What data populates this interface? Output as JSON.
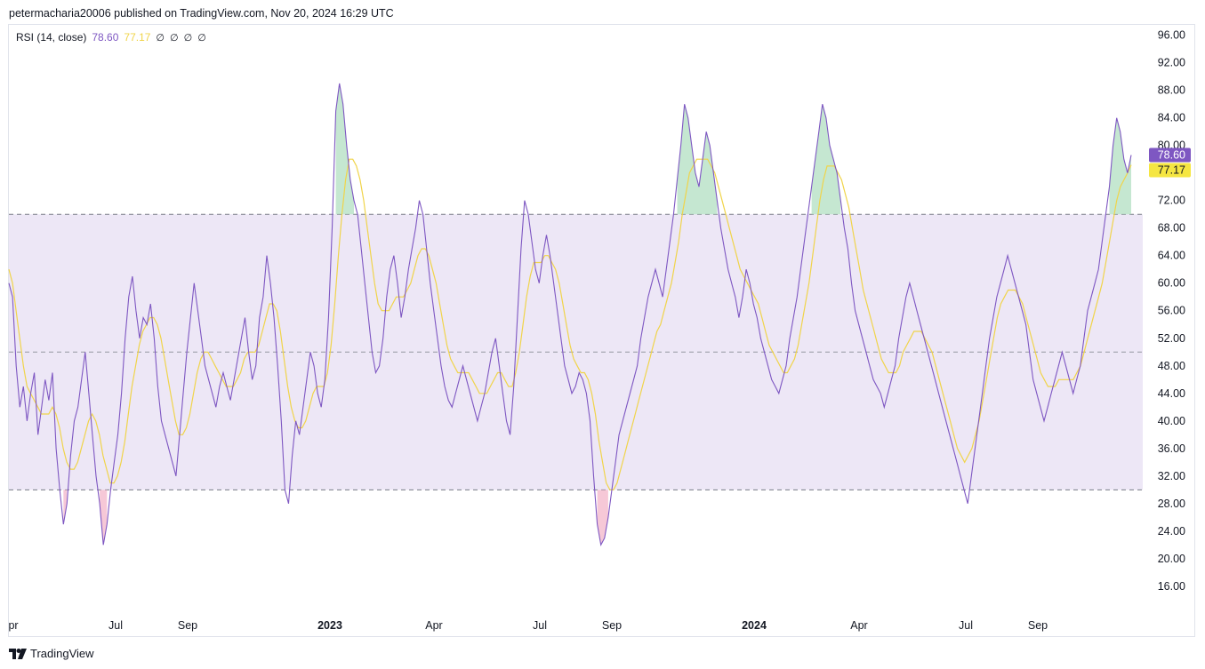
{
  "header": {
    "published": "petermacharia20006 published on TradingView.com, Nov 20, 2024 16:29 UTC"
  },
  "legend": {
    "name": "RSI (14, close)",
    "rsi_value": "78.60",
    "ma_value": "77.17",
    "na_marks": [
      "∅",
      "∅",
      "∅",
      "∅"
    ]
  },
  "footer": {
    "brand": "TradingView"
  },
  "colors": {
    "rsi": "#7e57c2",
    "ma": "#f0d44a",
    "band": "#ede7f6",
    "overbought_fill": "#b2dfc2",
    "oversold_fill": "#f3b6c9"
  },
  "chart_data": {
    "type": "line",
    "title": "RSI (14, close)",
    "ylim": [
      12.5,
      97.5
    ],
    "y_ticks": [
      "96.00",
      "92.00",
      "88.00",
      "84.00",
      "80.00",
      "76.00",
      "72.00",
      "68.00",
      "64.00",
      "60.00",
      "56.00",
      "52.00",
      "48.00",
      "44.00",
      "40.00",
      "36.00",
      "32.00",
      "28.00",
      "24.00",
      "20.00",
      "16.00"
    ],
    "x_ticks": [
      {
        "label": "pr",
        "bold": false
      },
      {
        "label": "Jul",
        "bold": false
      },
      {
        "label": "Sep",
        "bold": false
      },
      {
        "label": "2023",
        "bold": true
      },
      {
        "label": "Apr",
        "bold": false
      },
      {
        "label": "Jul",
        "bold": false
      },
      {
        "label": "Sep",
        "bold": false
      },
      {
        "label": "2024",
        "bold": true
      },
      {
        "label": "Apr",
        "bold": false
      },
      {
        "label": "Jul",
        "bold": false
      },
      {
        "label": "Sep",
        "bold": false
      }
    ],
    "levels": {
      "upper": 70,
      "middle": 50,
      "lower": 30
    },
    "price_tags": [
      {
        "label": "78.60",
        "value": 78.6,
        "color": "#7e57c2",
        "text_color": "#ffffff"
      },
      {
        "label": "77.17",
        "value": 77.17,
        "color": "#f5e642",
        "text_color": "#131722"
      }
    ],
    "grid": false,
    "series": [
      {
        "name": "RSI",
        "values": [
          60,
          58,
          48,
          42,
          45,
          40,
          44,
          47,
          38,
          42,
          46,
          43,
          47,
          36,
          30,
          25,
          28,
          35,
          40,
          42,
          46,
          50,
          44,
          38,
          32,
          28,
          22,
          25,
          30,
          34,
          38,
          44,
          52,
          58,
          61,
          56,
          52,
          55,
          54,
          57,
          52,
          45,
          40,
          38,
          36,
          34,
          32,
          38,
          44,
          50,
          55,
          60,
          56,
          52,
          48,
          46,
          44,
          42,
          45,
          47,
          45,
          43,
          46,
          49,
          52,
          55,
          50,
          46,
          48,
          55,
          58,
          64,
          60,
          55,
          48,
          40,
          30,
          28,
          35,
          40,
          38,
          42,
          46,
          50,
          48,
          44,
          42,
          46,
          55,
          68,
          85,
          89,
          86,
          80,
          75,
          72,
          70,
          65,
          60,
          55,
          50,
          47,
          48,
          52,
          58,
          62,
          64,
          60,
          55,
          58,
          62,
          65,
          68,
          72,
          70,
          65,
          60,
          56,
          52,
          48,
          45,
          43,
          42,
          44,
          46,
          48,
          46,
          44,
          42,
          40,
          42,
          44,
          47,
          50,
          52,
          48,
          44,
          40,
          38,
          45,
          55,
          65,
          72,
          70,
          66,
          62,
          60,
          64,
          67,
          64,
          60,
          56,
          52,
          48,
          46,
          44,
          45,
          47,
          46,
          44,
          40,
          32,
          25,
          22,
          23,
          26,
          30,
          34,
          38,
          40,
          42,
          44,
          46,
          48,
          52,
          55,
          58,
          60,
          62,
          60,
          58,
          62,
          66,
          70,
          75,
          80,
          86,
          84,
          80,
          76,
          74,
          78,
          82,
          80,
          76,
          72,
          68,
          65,
          62,
          60,
          58,
          55,
          58,
          62,
          60,
          57,
          55,
          52,
          50,
          48,
          46,
          45,
          44,
          46,
          48,
          52,
          55,
          58,
          62,
          66,
          70,
          74,
          78,
          82,
          86,
          84,
          80,
          78,
          76,
          72,
          68,
          65,
          60,
          56,
          54,
          52,
          50,
          48,
          46,
          45,
          44,
          42,
          44,
          46,
          48,
          52,
          55,
          58,
          60,
          58,
          56,
          54,
          52,
          50,
          48,
          46,
          44,
          42,
          40,
          38,
          36,
          34,
          32,
          30,
          28,
          32,
          36,
          40,
          44,
          48,
          52,
          55,
          58,
          60,
          62,
          64,
          62,
          60,
          58,
          56,
          54,
          50,
          46,
          44,
          42,
          40,
          42,
          44,
          46,
          48,
          50,
          48,
          46,
          44,
          46,
          48,
          52,
          56,
          58,
          60,
          62,
          66,
          70,
          74,
          80,
          84,
          82,
          78,
          76,
          78.6
        ]
      },
      {
        "name": "RSI-based MA",
        "values": [
          62,
          60,
          56,
          52,
          48,
          45,
          44,
          43,
          42,
          41,
          41,
          41,
          42,
          41,
          39,
          36,
          34,
          33,
          33,
          34,
          36,
          38,
          40,
          41,
          40,
          38,
          35,
          33,
          31,
          31,
          32,
          34,
          37,
          41,
          45,
          48,
          51,
          53,
          54,
          55,
          55,
          54,
          52,
          49,
          46,
          43,
          40,
          38,
          38,
          39,
          41,
          44,
          47,
          49,
          50,
          50,
          49,
          48,
          47,
          46,
          45,
          45,
          45,
          46,
          47,
          49,
          50,
          50,
          50,
          51,
          53,
          55,
          57,
          57,
          56,
          53,
          49,
          45,
          42,
          40,
          39,
          39,
          40,
          42,
          44,
          45,
          45,
          45,
          47,
          51,
          57,
          64,
          70,
          75,
          78,
          78,
          77,
          75,
          72,
          68,
          64,
          60,
          57,
          56,
          56,
          56,
          57,
          58,
          58,
          58,
          59,
          60,
          62,
          64,
          65,
          65,
          64,
          62,
          60,
          57,
          54,
          51,
          49,
          48,
          47,
          47,
          47,
          47,
          46,
          45,
          44,
          44,
          44,
          45,
          46,
          47,
          47,
          46,
          45,
          45,
          47,
          50,
          54,
          58,
          61,
          63,
          63,
          63,
          64,
          64,
          63,
          62,
          60,
          57,
          54,
          51,
          49,
          48,
          47,
          47,
          46,
          44,
          41,
          37,
          34,
          31,
          30,
          30,
          31,
          33,
          35,
          37,
          39,
          41,
          43,
          45,
          47,
          49,
          51,
          53,
          54,
          56,
          58,
          60,
          63,
          66,
          70,
          73,
          76,
          77,
          78,
          78,
          78,
          78,
          77,
          76,
          74,
          72,
          70,
          68,
          66,
          64,
          62,
          61,
          60,
          59,
          58,
          57,
          55,
          53,
          51,
          50,
          49,
          48,
          47,
          47,
          48,
          49,
          51,
          54,
          57,
          60,
          64,
          68,
          72,
          75,
          77,
          77,
          77,
          76,
          75,
          73,
          71,
          68,
          65,
          62,
          59,
          57,
          55,
          53,
          51,
          49,
          48,
          47,
          47,
          47,
          48,
          50,
          51,
          52,
          53,
          53,
          53,
          52,
          51,
          50,
          48,
          46,
          44,
          42,
          40,
          38,
          36,
          35,
          34,
          35,
          36,
          38,
          40,
          43,
          46,
          49,
          52,
          55,
          57,
          58,
          59,
          59,
          59,
          58,
          57,
          55,
          53,
          51,
          49,
          47,
          46,
          45,
          45,
          45,
          46,
          46,
          46,
          46,
          46,
          47,
          48,
          50,
          52,
          54,
          56,
          58,
          60,
          63,
          66,
          69,
          72,
          74,
          75,
          76,
          77.17
        ]
      }
    ]
  }
}
